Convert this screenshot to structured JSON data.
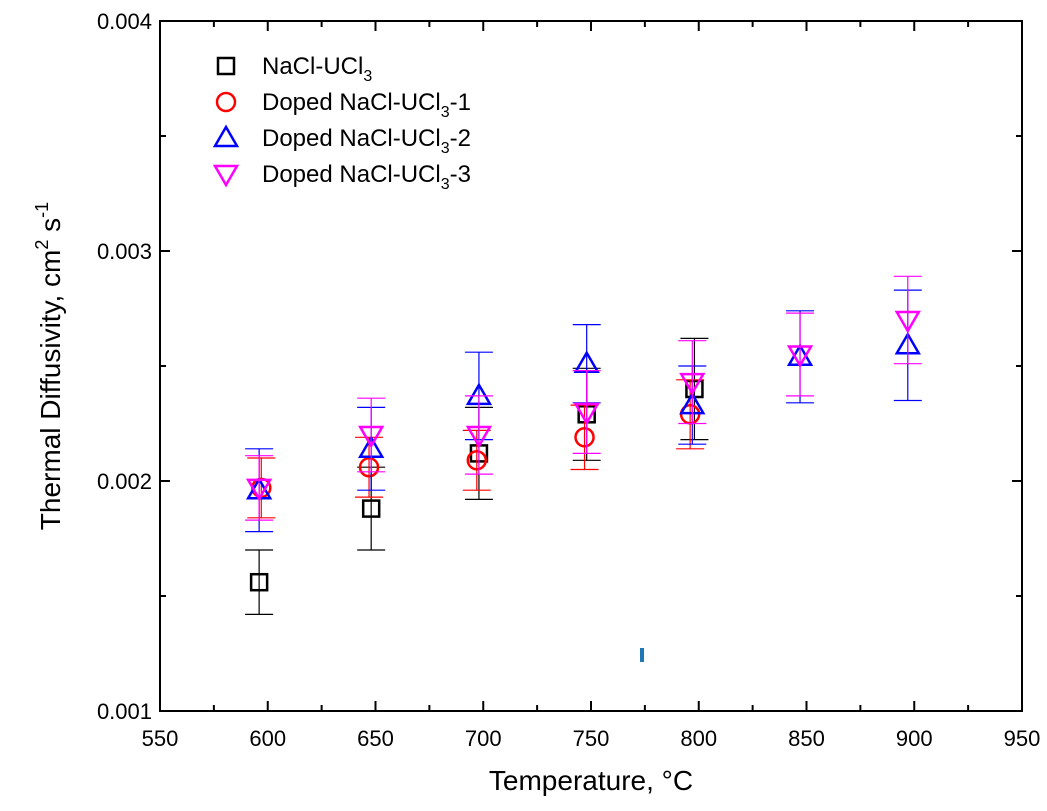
{
  "chart_data": {
    "type": "scatter",
    "xlabel": "Temperature, °C",
    "ylabel": {
      "main": "Thermal Diffusivity, cm",
      "exp1": "2",
      "mid": " s",
      "exp2": "-1"
    },
    "xlim": [
      550,
      950
    ],
    "ylim": [
      0.001,
      0.004
    ],
    "x_ticks": [
      "550",
      "600",
      "650",
      "700",
      "750",
      "800",
      "850",
      "900",
      "950"
    ],
    "y_ticks": [
      "0.001",
      "0.002",
      "0.003",
      "0.004"
    ],
    "x_tick_values": [
      550,
      600,
      650,
      700,
      750,
      800,
      850,
      900,
      950
    ],
    "y_tick_values": [
      0.001,
      0.002,
      0.003,
      0.004
    ],
    "grid": false,
    "legend_position": "top-left",
    "series": [
      {
        "name": "NaCl-UCl3",
        "legend": {
          "base": "NaCl-UCl",
          "sub": "3",
          "suffix": ""
        },
        "marker": "square",
        "color": "#000000",
        "points": [
          {
            "x": 596,
            "y": 0.00156,
            "yerr": 0.00014
          },
          {
            "x": 648,
            "y": 0.00188,
            "yerr": 0.00018
          },
          {
            "x": 698,
            "y": 0.00212,
            "yerr": 0.0002
          },
          {
            "x": 748,
            "y": 0.00229,
            "yerr": 0.0002
          },
          {
            "x": 798,
            "y": 0.0024,
            "yerr": 0.00022
          }
        ]
      },
      {
        "name": "Doped NaCl-UCl3-1",
        "legend": {
          "base": "Doped NaCl-UCl",
          "sub": "3",
          "suffix": "-1"
        },
        "marker": "circle",
        "color": "#ff0000",
        "points": [
          {
            "x": 597,
            "y": 0.00197,
            "yerr": 0.00013
          },
          {
            "x": 647,
            "y": 0.00206,
            "yerr": 0.00013
          },
          {
            "x": 697,
            "y": 0.00209,
            "yerr": 0.00013
          },
          {
            "x": 747,
            "y": 0.00219,
            "yerr": 0.00014
          },
          {
            "x": 796,
            "y": 0.00229,
            "yerr": 0.00015
          }
        ]
      },
      {
        "name": "Doped NaCl-UCl3-2",
        "legend": {
          "base": "Doped NaCl-UCl",
          "sub": "3",
          "suffix": "-2"
        },
        "marker": "triangle-up",
        "color": "#0000ff",
        "points": [
          {
            "x": 596,
            "y": 0.00196,
            "yerr": 0.00018
          },
          {
            "x": 648,
            "y": 0.00214,
            "yerr": 0.00018
          },
          {
            "x": 698,
            "y": 0.00237,
            "yerr": 0.00019
          },
          {
            "x": 748,
            "y": 0.00251,
            "yerr": 0.00017
          },
          {
            "x": 797,
            "y": 0.00233,
            "yerr": 0.00017
          },
          {
            "x": 847,
            "y": 0.00254,
            "yerr": 0.0002
          },
          {
            "x": 897,
            "y": 0.00259,
            "yerr": 0.00024
          }
        ]
      },
      {
        "name": "Doped NaCl-UCl3-3",
        "legend": {
          "base": "Doped NaCl-UCl",
          "sub": "3",
          "suffix": "-3"
        },
        "marker": "triangle-down",
        "color": "#ff00ff",
        "points": [
          {
            "x": 596,
            "y": 0.00197,
            "yerr": 0.00014
          },
          {
            "x": 648,
            "y": 0.0022,
            "yerr": 0.00016
          },
          {
            "x": 698,
            "y": 0.0022,
            "yerr": 0.00017
          },
          {
            "x": 748,
            "y": 0.0023,
            "yerr": 0.00018
          },
          {
            "x": 797,
            "y": 0.00243,
            "yerr": 0.00018
          },
          {
            "x": 847,
            "y": 0.00255,
            "yerr": 0.00018
          },
          {
            "x": 897,
            "y": 0.0027,
            "yerr": 0.00019
          }
        ]
      }
    ]
  }
}
